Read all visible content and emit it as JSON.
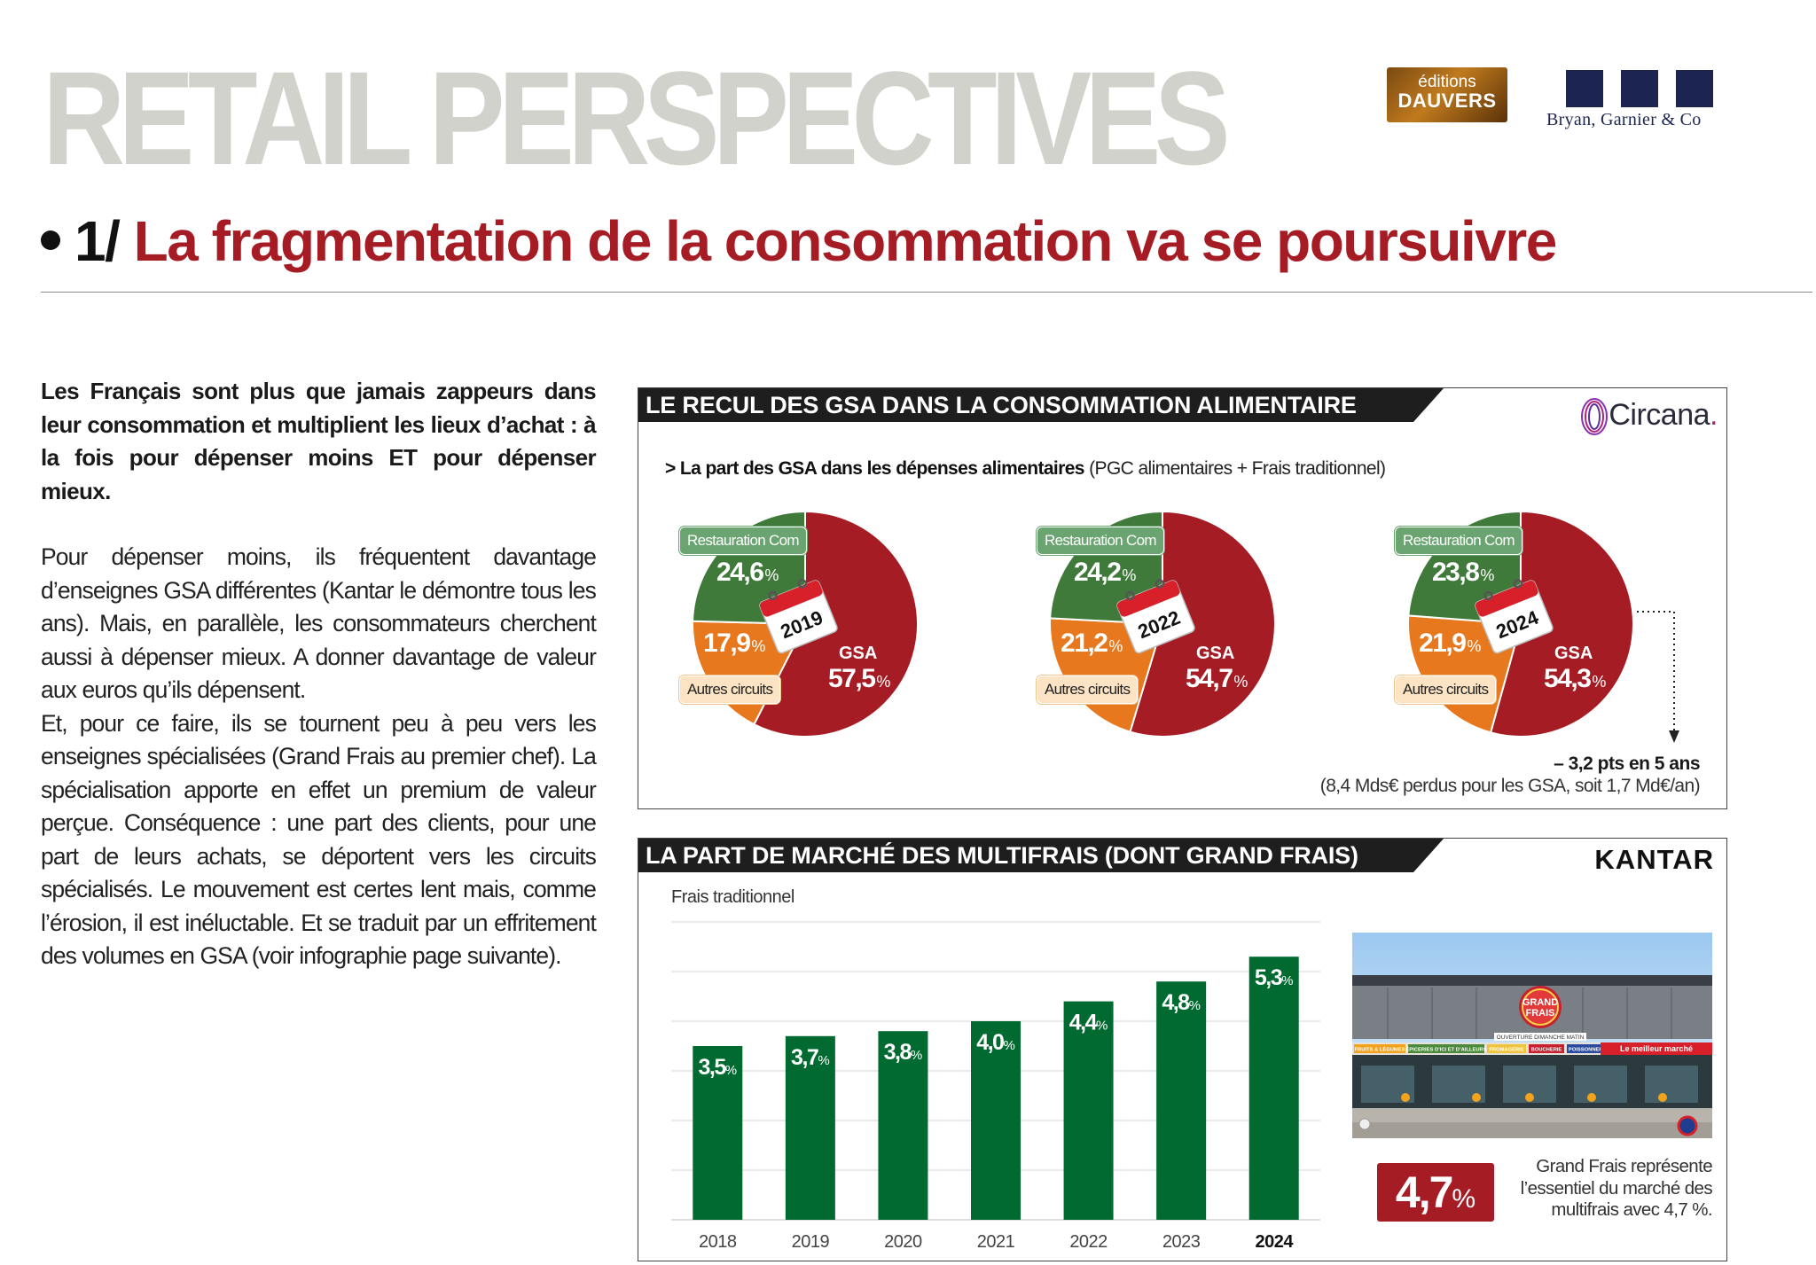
{
  "header": {
    "masthead": "RETAIL PERSPECTIVES",
    "logo_dauvers_line1": "éditions",
    "logo_dauvers_line2": "DAUVERS",
    "logo_bg": "Bryan, Garnier & Co"
  },
  "section": {
    "number": "1/",
    "title": "La fragmentation de la consommation va se poursuivre"
  },
  "article": {
    "lead": "Les Français sont plus que jamais zappeurs dans leur consommation et multiplient les lieux d’achat : à la fois pour dépenser moins ET pour dépenser mieux.",
    "paragraph1": "Pour dépenser moins, ils fréquentent davantage d’enseignes GSA différentes (Kantar le démontre tous les ans). Mais, en parallèle, les consommateurs cherchent aussi à dépenser mieux. A donner davantage de valeur aux euros qu’ils dépensent.",
    "paragraph2": "Et, pour ce faire, ils se tournent peu à peu vers les enseignes spécialisées (Grand Frais au premier chef). La spécialisation apporte en effet un premium de valeur perçue. Conséquence : une part des clients, pour une part de leurs achats, se déportent vers les circuits spécialisés. Le mouvement est certes lent mais, comme l’érosion, il est inéluctable. Et se traduit par un effritement des volumes en GSA (voir infographie page suivante)."
  },
  "colors": {
    "gsa": "#a51c24",
    "restauration": "#3f7a3a",
    "autres": "#e8781e",
    "bar": "#006a30",
    "accent": "#a51c24"
  },
  "panel_pies": {
    "title": "LE RECUL DES GSA DANS LA CONSOMMATION ALIMENTAIRE",
    "source": "Circana",
    "subtitle_bold": "> La part des GSA dans les dépenses alimentaires",
    "subtitle_rest": "(PGC alimentaires + Frais traditionnel)",
    "label_restauration": "Restauration Com",
    "label_autres": "Autres circuits",
    "label_gsa": "GSA",
    "decline_title": "– 3,2 pts en 5 ans",
    "decline_detail": "(8,4 Mds€ perdus pour les GSA, soit 1,7 Md€/an)"
  },
  "panel_bars": {
    "title": "LA PART DE MARCHÉ DES MULTIFRAIS (DONT GRAND FRAIS)",
    "source": "KANTAR",
    "subtitle": "Frais traditionnel",
    "highlight_value": "4,7",
    "highlight_unit": "%",
    "note": "Grand Frais représente l’essentiel du marché des multifrais avec 4,7 %.",
    "photo": {
      "logo_line1": "GRAND",
      "logo_line2": "FRAIS",
      "banner": "OUVERTURE DIMANCHE MATIN",
      "sign_items": [
        "FRUITS & LÉGUMES",
        "ÉPICERIES D’ICI ET D’AILLEURS",
        "FROMAGERIE",
        "BOUCHERIE",
        "POISSONNERIE"
      ],
      "sign_slogan": "Le meilleur marché"
    }
  },
  "chart_data": [
    {
      "type": "pie",
      "year": "2019",
      "slices": [
        {
          "label": "GSA",
          "value": 57.5,
          "display": "57,5"
        },
        {
          "label": "Autres circuits",
          "value": 17.9,
          "display": "17,9"
        },
        {
          "label": "Restauration Com",
          "value": 24.6,
          "display": "24,6"
        }
      ],
      "unit": "%"
    },
    {
      "type": "pie",
      "year": "2022",
      "slices": [
        {
          "label": "GSA",
          "value": 54.7,
          "display": "54,7"
        },
        {
          "label": "Autres circuits",
          "value": 21.2,
          "display": "21,2"
        },
        {
          "label": "Restauration Com",
          "value": 24.2,
          "display": "24,2"
        }
      ],
      "unit": "%"
    },
    {
      "type": "pie",
      "year": "2024",
      "slices": [
        {
          "label": "GSA",
          "value": 54.3,
          "display": "54,3"
        },
        {
          "label": "Autres circuits",
          "value": 21.9,
          "display": "21,9"
        },
        {
          "label": "Restauration Com",
          "value": 23.8,
          "display": "23,8"
        }
      ],
      "unit": "%"
    },
    {
      "type": "bar",
      "categories": [
        "2018",
        "2019",
        "2020",
        "2021",
        "2022",
        "2023",
        "2024"
      ],
      "values": [
        3.5,
        3.7,
        3.8,
        4.0,
        4.4,
        4.8,
        5.3
      ],
      "labels": [
        "3,5",
        "3,7",
        "3,8",
        "4,0",
        "4,4",
        "4,8",
        "5,3"
      ],
      "unit": "%",
      "ylim": [
        0,
        6
      ],
      "grid": true,
      "highlight_category": "2024"
    }
  ]
}
